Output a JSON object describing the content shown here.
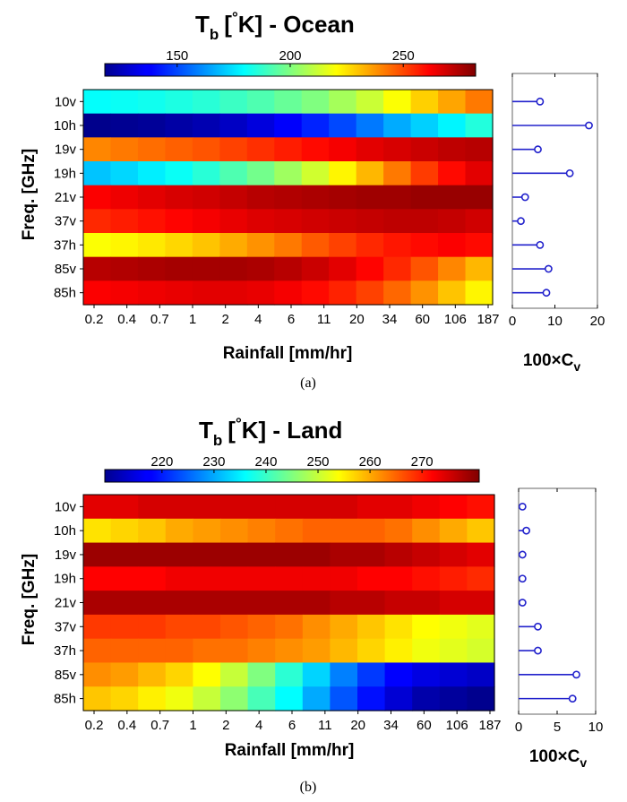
{
  "chart_data": [
    {
      "type": "heatmap",
      "title": "T_b [°K] - Ocean",
      "title_parts": {
        "main": "T",
        "sub": "b",
        "bracket": "[",
        "degree": "°",
        "unit": "K]",
        "suffix": " - Ocean"
      },
      "colorbar": {
        "min": 118,
        "max": 282,
        "ticks": [
          150,
          200,
          250
        ],
        "colormap": "jet"
      },
      "ylabel": "Freq. [GHz]",
      "xlabel": "Rainfall [mm/hr]",
      "rows": [
        "10v",
        "10h",
        "19v",
        "19h",
        "21v",
        "37v",
        "37h",
        "85v",
        "85h"
      ],
      "x_ticks": [
        "0.2",
        "0.4",
        "0.7",
        "1",
        "2",
        "4",
        "6",
        "11",
        "20",
        "34",
        "60",
        "106",
        "187"
      ],
      "values": [
        [
          180,
          181,
          182,
          184,
          186,
          189,
          192,
          196,
          200,
          206,
          212,
          220,
          228,
          235,
          242
        ],
        [
          120,
          121,
          122,
          124,
          126,
          129,
          133,
          138,
          144,
          150,
          158,
          166,
          172,
          178,
          185
        ],
        [
          240,
          242,
          244,
          246,
          248,
          251,
          254,
          257,
          260,
          263,
          266,
          268,
          270,
          272,
          273
        ],
        [
          170,
          173,
          177,
          181,
          186,
          192,
          198,
          205,
          213,
          222,
          232,
          242,
          252,
          260,
          266
        ],
        [
          262,
          264,
          266,
          268,
          269,
          271,
          273,
          274,
          275,
          276,
          277,
          277,
          278,
          278,
          278
        ],
        [
          255,
          257,
          259,
          261,
          263,
          265,
          267,
          268,
          269,
          270,
          271,
          272,
          272,
          271,
          269
        ],
        [
          220,
          222,
          224,
          227,
          230,
          234,
          238,
          242,
          247,
          251,
          255,
          258,
          260,
          262,
          260
        ],
        [
          273,
          274,
          275,
          276,
          276,
          276,
          275,
          273,
          270,
          266,
          261,
          255,
          248,
          240,
          232
        ],
        [
          262,
          263,
          264,
          265,
          266,
          266,
          265,
          263,
          260,
          256,
          251,
          245,
          238,
          230,
          222
        ]
      ],
      "stem": {
        "xlabel_main": "100×C",
        "xlabel_sub": "v",
        "x_ticks": [
          0,
          10,
          20
        ],
        "xlim": [
          0,
          20
        ],
        "values": [
          6.5,
          18,
          6,
          13.5,
          3,
          2,
          6.5,
          8.5,
          8
        ],
        "color": "#2222cc"
      },
      "caption": "(a)"
    },
    {
      "type": "heatmap",
      "title": "T_b [°K] - Land",
      "title_parts": {
        "main": "T",
        "sub": "b",
        "bracket": "[",
        "degree": "°",
        "unit": "K]",
        "suffix": " - Land"
      },
      "colorbar": {
        "min": 209,
        "max": 281,
        "ticks": [
          220,
          230,
          240,
          250,
          260,
          270
        ],
        "colormap": "jet"
      },
      "ylabel": "Freq. [GHz]",
      "xlabel": "Rainfall [mm/hr]",
      "rows": [
        "10v",
        "10h",
        "19v",
        "19h",
        "21v",
        "37v",
        "37h",
        "85v",
        "85h"
      ],
      "x_ticks": [
        "0.2",
        "0.4",
        "0.7",
        "1",
        "2",
        "4",
        "6",
        "11",
        "20",
        "34",
        "60",
        "106",
        "187"
      ],
      "values": [
        [
          274,
          274,
          275,
          275,
          275,
          275,
          275,
          275,
          275,
          275,
          274,
          274,
          273,
          272,
          271
        ],
        [
          256,
          257,
          258,
          260,
          261,
          262,
          263,
          264,
          265,
          265,
          265,
          264,
          262,
          260,
          258
        ],
        [
          279,
          279,
          279,
          279,
          279,
          279,
          279,
          279,
          279,
          278,
          278,
          277,
          276,
          275,
          274
        ],
        [
          272,
          272,
          272,
          273,
          273,
          273,
          273,
          273,
          273,
          273,
          272,
          272,
          271,
          270,
          269
        ],
        [
          278,
          278,
          278,
          278,
          278,
          278,
          278,
          278,
          278,
          277,
          277,
          276,
          276,
          275,
          275
        ],
        [
          268,
          268,
          268,
          267,
          267,
          266,
          265,
          264,
          262,
          260,
          258,
          256,
          254,
          253,
          252
        ],
        [
          265,
          265,
          265,
          265,
          264,
          264,
          263,
          262,
          261,
          259,
          257,
          255,
          253,
          252,
          251
        ],
        [
          262,
          261,
          259,
          257,
          254,
          250,
          245,
          239,
          233,
          227,
          222,
          218,
          216,
          215,
          214
        ],
        [
          258,
          257,
          255,
          253,
          250,
          246,
          241,
          236,
          230,
          224,
          219,
          215,
          212,
          211,
          210
        ]
      ],
      "stem": {
        "xlabel_main": "100×C",
        "xlabel_sub": "v",
        "x_ticks": [
          0,
          5,
          10
        ],
        "xlim": [
          0,
          10
        ],
        "values": [
          0.5,
          1,
          0.5,
          0.5,
          0.5,
          2.5,
          2.5,
          7.5,
          7
        ],
        "color": "#2222cc"
      },
      "caption": "(b)"
    }
  ]
}
